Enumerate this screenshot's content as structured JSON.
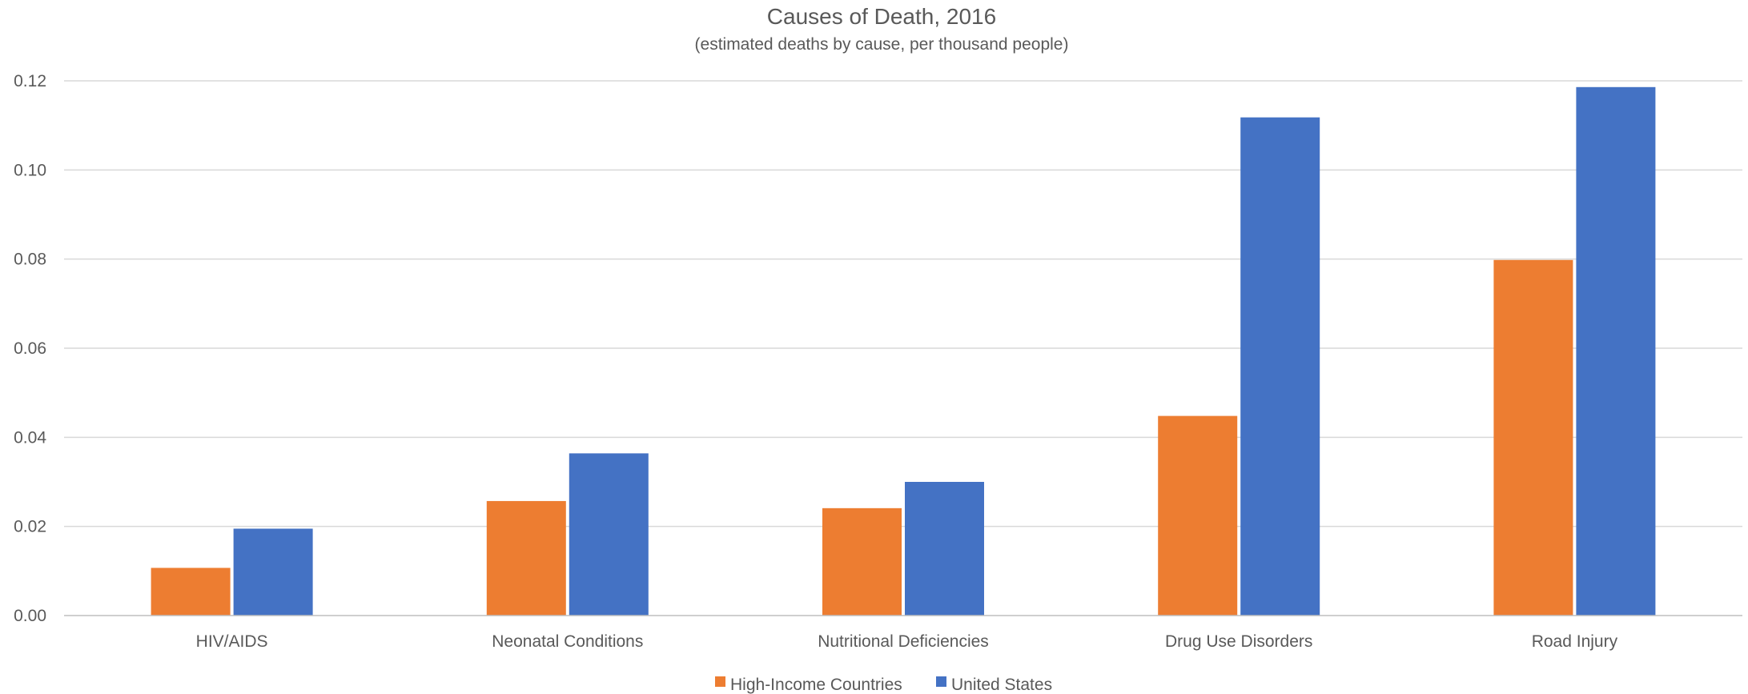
{
  "chart_data": {
    "type": "bar",
    "title": "Causes of Death, 2016",
    "subtitle": "(estimated deaths by cause, per thousand people)",
    "xlabel": "",
    "ylabel": "",
    "categories": [
      "HIV/AIDS",
      "Neonatal Conditions",
      "Nutritional Deficiencies",
      "Drug Use Disorders",
      "Road Injury"
    ],
    "series": [
      {
        "name": "High-Income Countries",
        "color": "#ED7D31",
        "values": [
          0.0107,
          0.0257,
          0.0241,
          0.0448,
          0.0798
        ]
      },
      {
        "name": "United States",
        "color": "#4472C4",
        "values": [
          0.0195,
          0.0364,
          0.03,
          0.1118,
          0.1186
        ]
      }
    ],
    "ylim": [
      0,
      0.12
    ],
    "yticks": [
      "0.00",
      "0.02",
      "0.04",
      "0.06",
      "0.08",
      "0.10",
      "0.12"
    ],
    "grid": true,
    "legend_position": "bottom"
  }
}
